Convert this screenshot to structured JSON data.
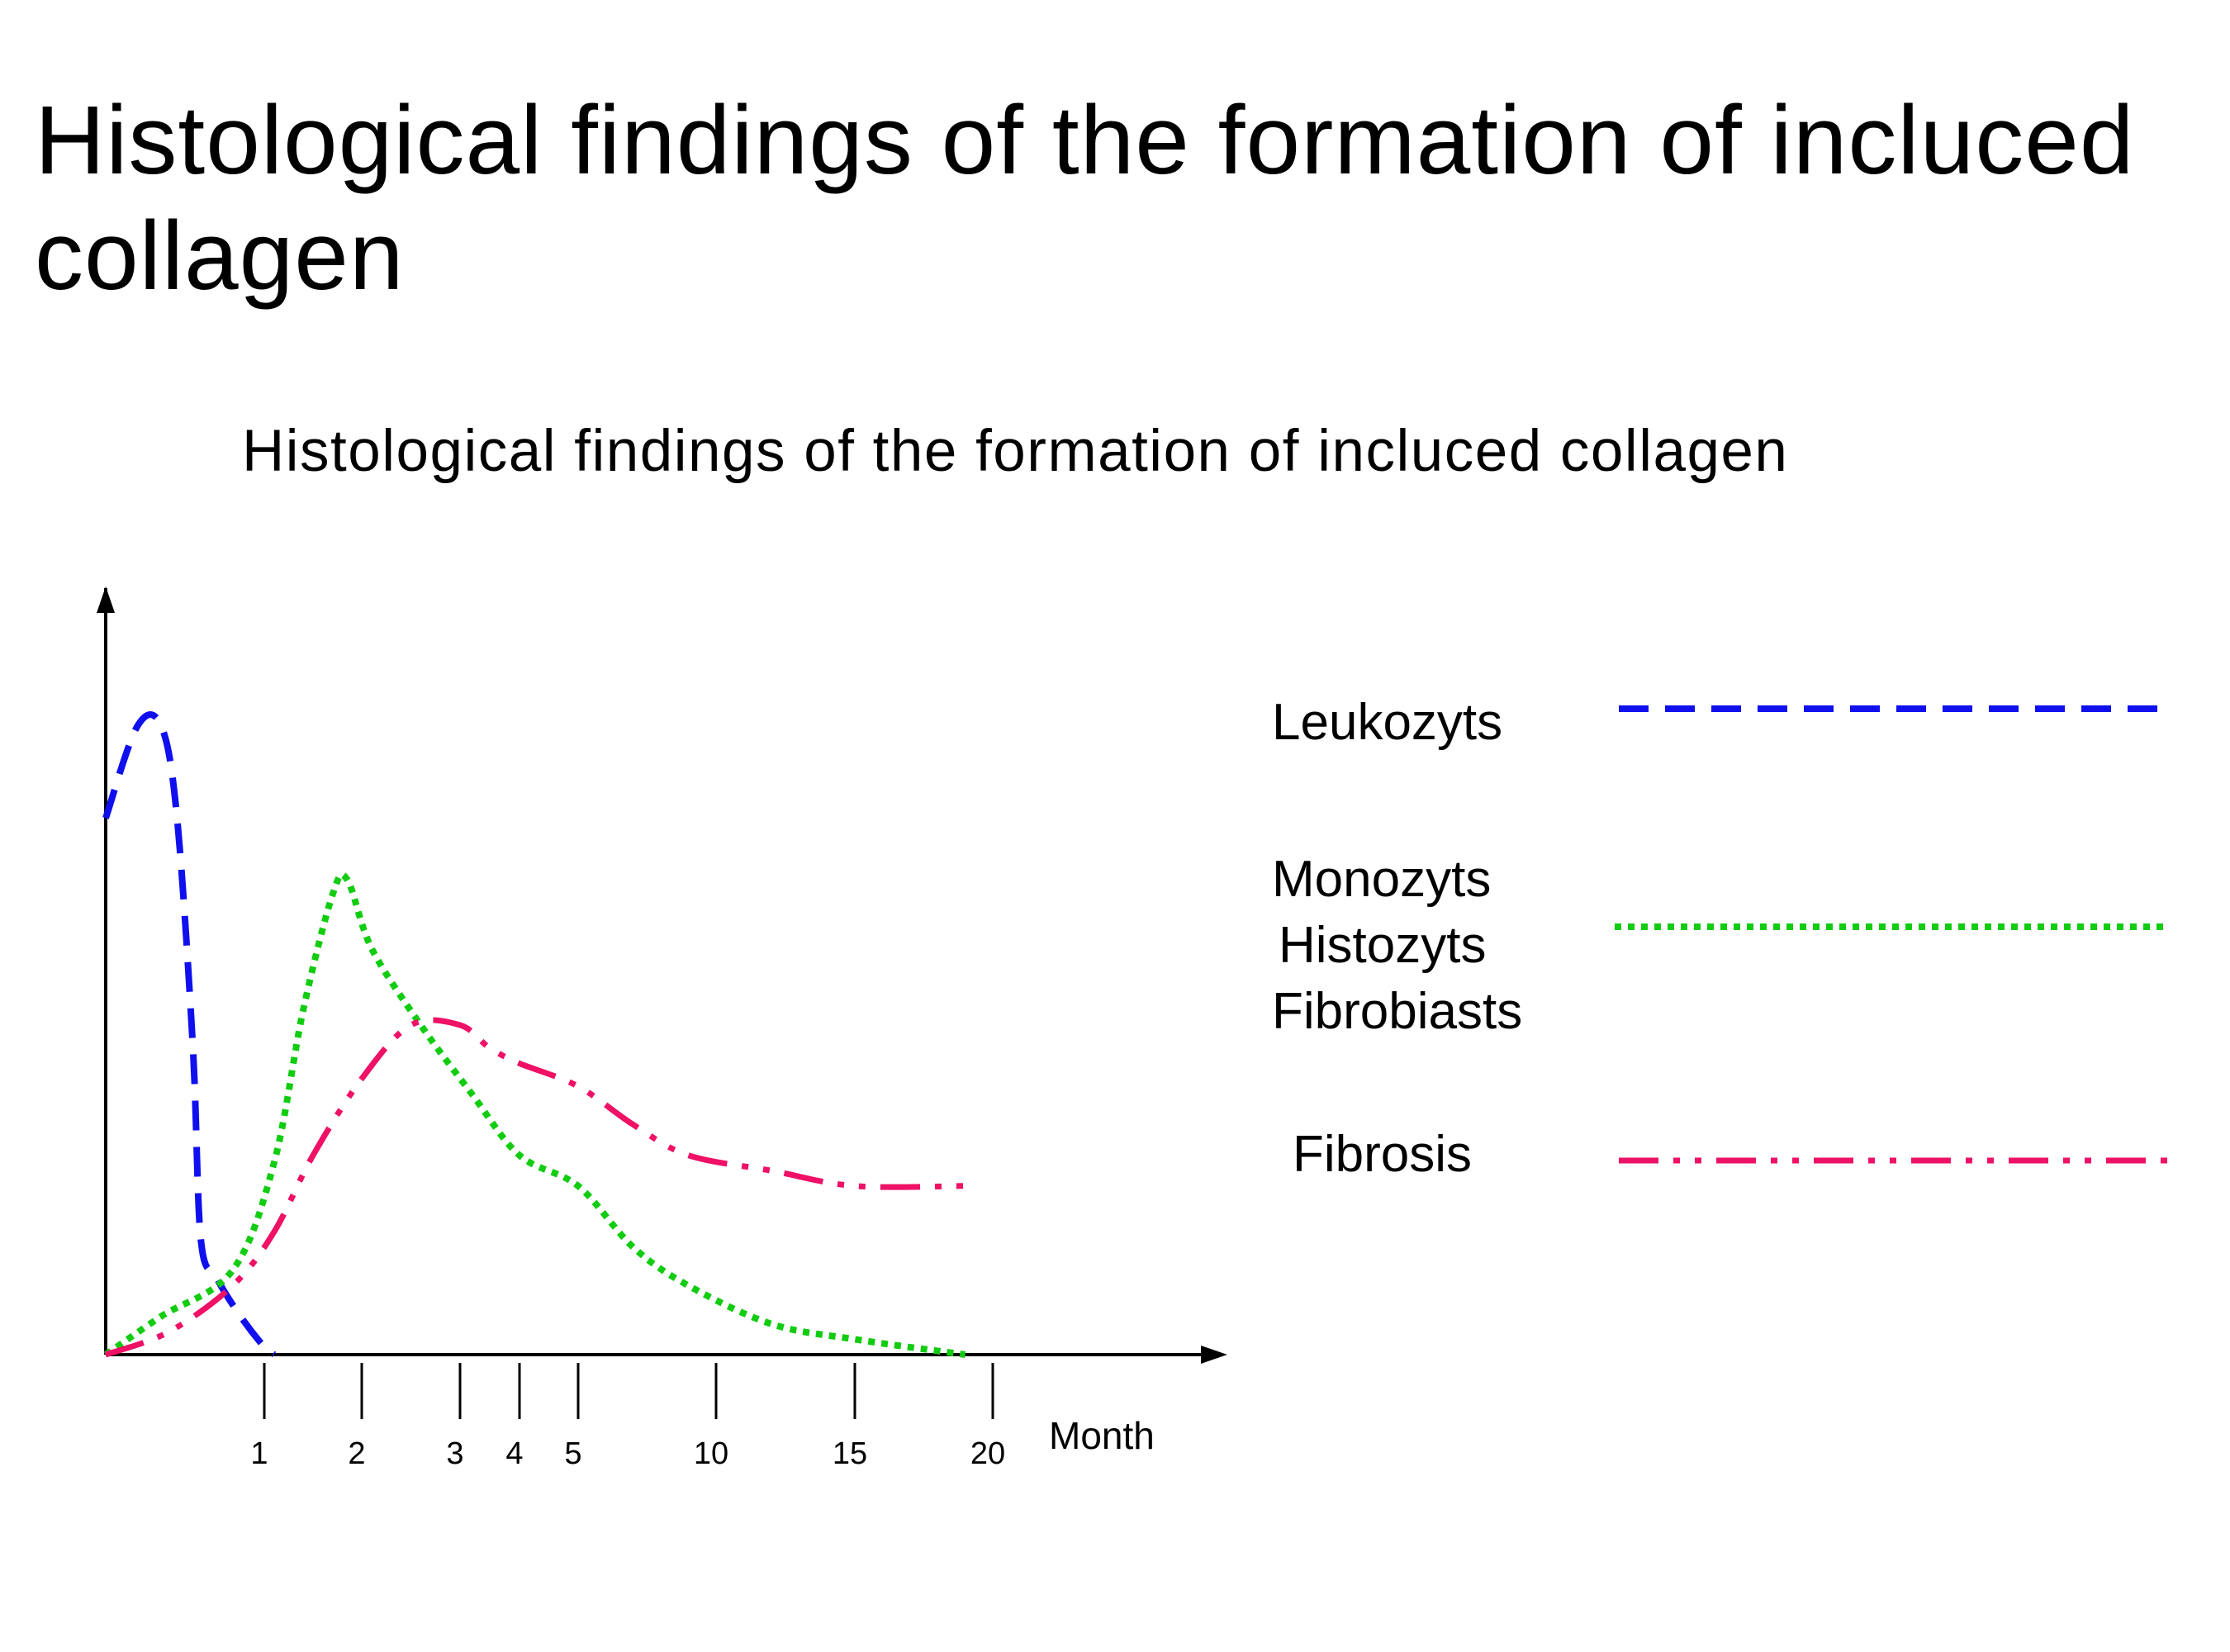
{
  "slide": {
    "title": "Histological findings of the formation of incluced collagen"
  },
  "chart_data": {
    "type": "line",
    "title": "Histological findings of the formation of incluced collagen",
    "xlabel": "Month",
    "ylabel": "",
    "x_ticks": [
      "1",
      "2",
      "3",
      "4",
      "5",
      "10",
      "15",
      "20"
    ],
    "x_scale": "non-linear (compressed) month axis",
    "y_scale": "relative intensity (unlabeled)",
    "ylim": [
      0,
      100
    ],
    "grid": false,
    "legend_position": "right",
    "series": [
      {
        "name": "Leukozyts",
        "color": "#1010ee",
        "style": "dashed",
        "points": [
          [
            0,
            70
          ],
          [
            0.2,
            82
          ],
          [
            0.35,
            82
          ],
          [
            0.45,
            70
          ],
          [
            0.55,
            40
          ],
          [
            0.6,
            15
          ],
          [
            0.7,
            10
          ],
          [
            0.85,
            5
          ],
          [
            1.0,
            1
          ],
          [
            1.1,
            0
          ]
        ]
      },
      {
        "name": "Monozyts\nHistozyts\nFibrobiasts",
        "color": "#11cc11",
        "style": "dotted",
        "points": [
          [
            0,
            0
          ],
          [
            0.35,
            5
          ],
          [
            0.8,
            11
          ],
          [
            1.1,
            25
          ],
          [
            1.4,
            45
          ],
          [
            1.7,
            60
          ],
          [
            1.85,
            62
          ],
          [
            2.1,
            53
          ],
          [
            2.6,
            43
          ],
          [
            3.2,
            34
          ],
          [
            4.0,
            26
          ],
          [
            5.0,
            22
          ],
          [
            7.0,
            14
          ],
          [
            9.0,
            9
          ],
          [
            12.0,
            4
          ],
          [
            15.0,
            2
          ],
          [
            19.0,
            0
          ]
        ]
      },
      {
        "name": "Fibrosis",
        "color": "#ee1166",
        "style": "dash-dot-dot",
        "points": [
          [
            0,
            0
          ],
          [
            0.4,
            3
          ],
          [
            0.8,
            9
          ],
          [
            1.1,
            16
          ],
          [
            1.5,
            26
          ],
          [
            2.0,
            36
          ],
          [
            2.5,
            43
          ],
          [
            3.0,
            43
          ],
          [
            3.5,
            40
          ],
          [
            4.0,
            38
          ],
          [
            5.0,
            35
          ],
          [
            7.0,
            30
          ],
          [
            9.0,
            26
          ],
          [
            12.0,
            24
          ],
          [
            15.0,
            22
          ],
          [
            19.0,
            22
          ]
        ]
      }
    ]
  }
}
